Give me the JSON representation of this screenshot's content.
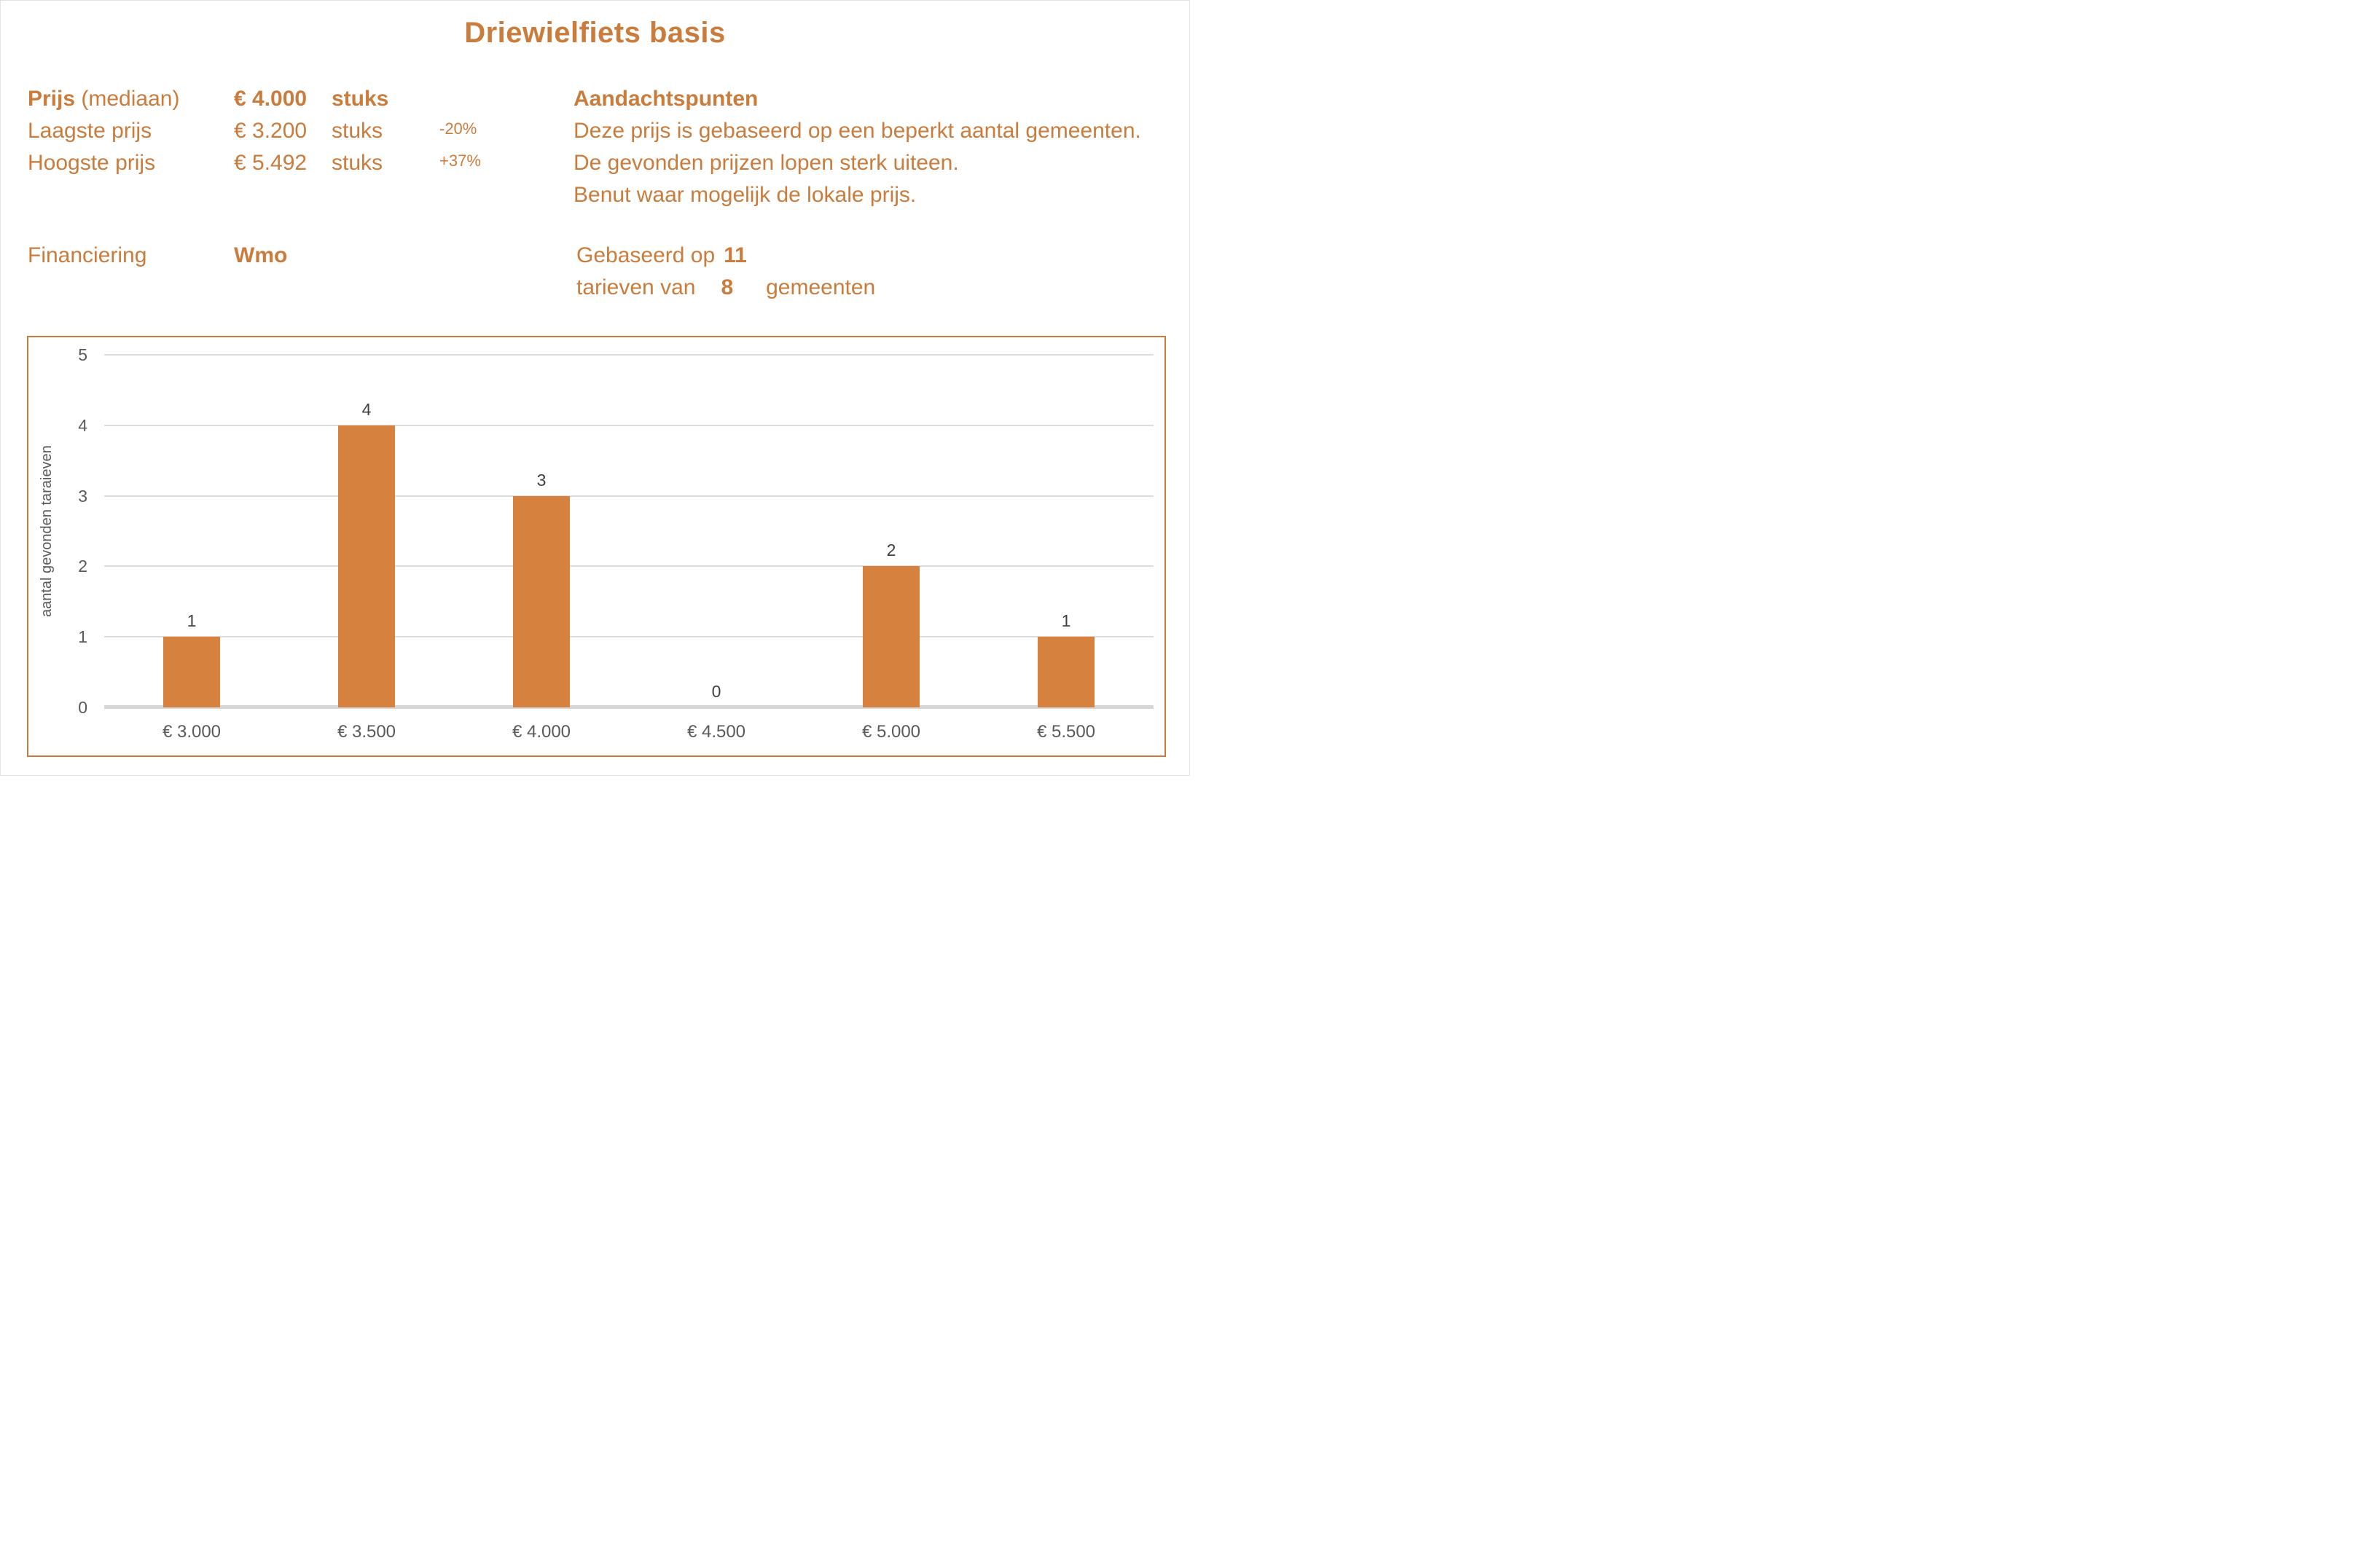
{
  "title": "Driewielfiets basis",
  "colors": {
    "accent_text": "#C97C3C",
    "bar": "#D6823E",
    "frame": "#C97C3C",
    "gridline": "#DCDCDC",
    "axis_line": "#D6D6D6",
    "tick_text": "#595959",
    "data_label": "#404040"
  },
  "stats": {
    "rows": [
      {
        "label_strong": "Prijs",
        "label_normal": " (mediaan)",
        "value": "€ 4.000",
        "unit": "stuks",
        "pct": "",
        "emphasis": true
      },
      {
        "label_strong": "",
        "label_normal": "Laagste prijs",
        "value": "€ 3.200",
        "unit": "stuks",
        "pct": "-20%",
        "emphasis": false
      },
      {
        "label_strong": "",
        "label_normal": "Hoogste prijs",
        "value": "€ 5.492",
        "unit": "stuks",
        "pct": "+37%",
        "emphasis": false
      }
    ]
  },
  "financing": {
    "label": "Financiering",
    "value": "Wmo"
  },
  "notes": {
    "heading": "Aandachtspunten",
    "lines": [
      "Deze prijs is gebaseerd op een beperkt aantal gemeenten.",
      "De gevonden prijzen lopen sterk uiteen.",
      "Benut waar mogelijk de lokale prijs."
    ]
  },
  "based_on": {
    "line1_prefix": "Gebaseerd op",
    "line1_value": "11",
    "line2_prefix": "tarieven van",
    "line2_value": "8",
    "line2_suffix": "gemeenten"
  },
  "chart_data": {
    "type": "bar",
    "title": "",
    "categories": [
      "€ 3.000",
      "€ 3.500",
      "€ 4.000",
      "€ 4.500",
      "€ 5.000",
      "€ 5.500"
    ],
    "values": [
      1,
      4,
      3,
      0,
      2,
      1
    ],
    "xlabel": "",
    "ylabel": "aantal gevonden taraieven",
    "ylim": [
      0,
      5
    ],
    "yticks": [
      0,
      1,
      2,
      3,
      4,
      5
    ],
    "grid": true,
    "legend": false,
    "bar_color": "#D6823E"
  }
}
